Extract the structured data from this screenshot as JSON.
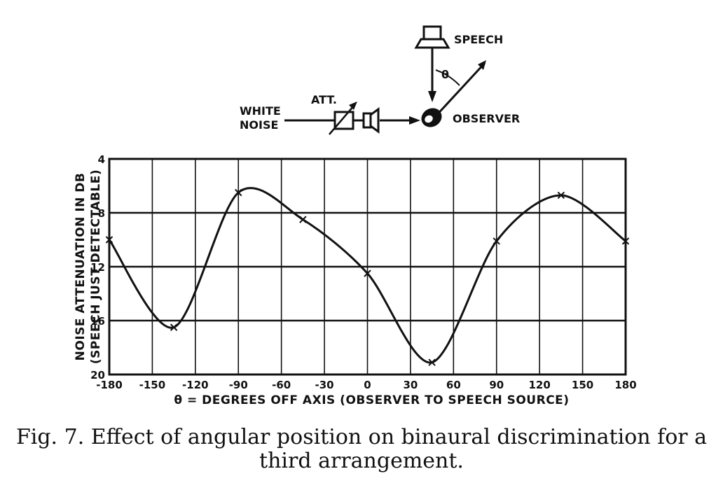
{
  "diagram": {
    "speech_label": "SPEECH",
    "theta_label": "θ",
    "att_label": "ATT.",
    "white_label": "WHITE",
    "noise_label": "NOISE",
    "observer_label": "OBSERVER"
  },
  "chart_data": {
    "type": "line",
    "xlabel": "θ = DEGREES OFF AXIS (OBSERVER TO SPEECH SOURCE)",
    "ylabel_line1": "NOISE ATTENUATION IN DB",
    "ylabel_line2": "(SPEECH JUST DETECTABLE)",
    "xlim": [
      -180,
      180
    ],
    "ylim": [
      4,
      20
    ],
    "y_inverted": true,
    "grid": true,
    "xticks": [
      -180,
      -150,
      -120,
      -90,
      -60,
      -30,
      0,
      30,
      60,
      90,
      120,
      150,
      180
    ],
    "xtick_labels": [
      "-180",
      "-150",
      "-120",
      "-90",
      "-60",
      "-30",
      "0",
      "30",
      "60",
      "90",
      "120",
      "150",
      "180"
    ],
    "yticks": [
      4,
      8,
      12,
      16,
      20
    ],
    "ytick_labels": [
      "4",
      "8",
      "12",
      "16",
      "20"
    ],
    "points": [
      {
        "x": -180,
        "y": 10.0
      },
      {
        "x": -135,
        "y": 16.5
      },
      {
        "x": -90,
        "y": 6.5
      },
      {
        "x": -45,
        "y": 8.5
      },
      {
        "x": 0,
        "y": 12.5
      },
      {
        "x": 45,
        "y": 19.1
      },
      {
        "x": 90,
        "y": 10.1
      },
      {
        "x": 135,
        "y": 6.7
      },
      {
        "x": 180,
        "y": 10.1
      }
    ],
    "marker": "x"
  },
  "caption": {
    "line1": "Fig. 7. Effect of angular position on binaural discrimination for a",
    "line2": "third arrangement."
  }
}
